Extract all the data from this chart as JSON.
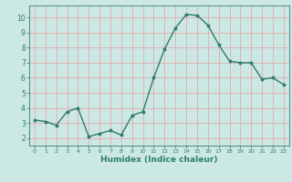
{
  "x": [
    0,
    1,
    2,
    3,
    4,
    5,
    6,
    7,
    8,
    9,
    10,
    11,
    12,
    13,
    14,
    15,
    16,
    17,
    18,
    19,
    20,
    21,
    22,
    23
  ],
  "y": [
    3.2,
    3.1,
    2.85,
    3.75,
    4.0,
    2.1,
    2.3,
    2.5,
    2.2,
    3.5,
    3.75,
    6.0,
    7.9,
    9.3,
    10.2,
    10.15,
    9.5,
    8.2,
    7.1,
    7.0,
    7.0,
    5.9,
    6.0,
    5.55
  ],
  "line_color": "#2e7d6e",
  "marker": "o",
  "marker_size": 1.8,
  "line_width": 1.0,
  "bg_color": "#cce8e4",
  "grid_color": "#e8a0a0",
  "axis_color": "#2e7d6e",
  "xlabel": "Humidex (Indice chaleur)",
  "xlabel_fontsize": 6.5,
  "xlim": [
    -0.5,
    23.5
  ],
  "ylim": [
    1.5,
    10.8
  ],
  "yticks": [
    2,
    3,
    4,
    5,
    6,
    7,
    8,
    9,
    10
  ],
  "xticks": [
    0,
    1,
    2,
    3,
    4,
    5,
    6,
    7,
    8,
    9,
    10,
    11,
    12,
    13,
    14,
    15,
    16,
    17,
    18,
    19,
    20,
    21,
    22,
    23
  ]
}
